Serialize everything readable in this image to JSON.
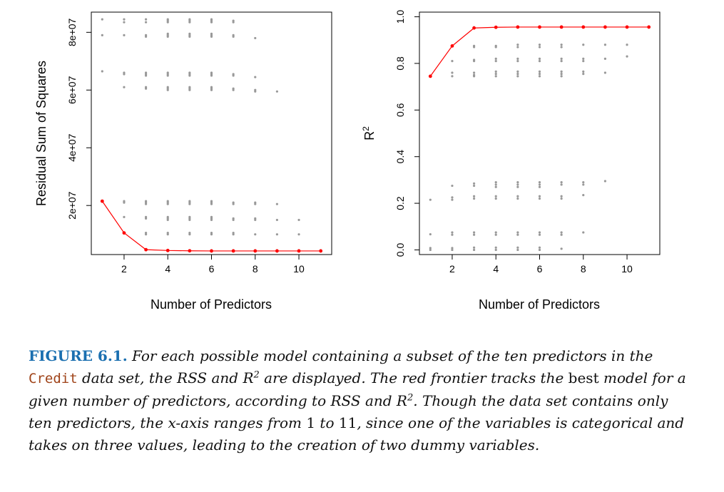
{
  "chart_data": [
    {
      "type": "scatter",
      "xlabel": "Number of Predictors",
      "ylabel": "Residual Sum of Squares",
      "xlim": [
        0.5,
        11.5
      ],
      "ylim": [
        3000000,
        87000000
      ],
      "xticks": [
        2,
        4,
        6,
        8,
        10
      ],
      "xtick_labels": [
        "2",
        "4",
        "6",
        "8",
        "10"
      ],
      "yticks": [
        20000000,
        40000000,
        60000000,
        80000000
      ],
      "ytick_labels": [
        "2e+07",
        "4e+07",
        "6e+07",
        "8e+07"
      ],
      "grid": false,
      "colors": {
        "points": "#999999",
        "frontier": "#ff0000"
      },
      "point_groups": [
        {
          "x": 1,
          "values": [
            84500000,
            79000000,
            66500000,
            21500000
          ]
        },
        {
          "x": 2,
          "values": [
            84500000,
            83500000,
            79000000,
            66000000,
            65500000,
            61000000,
            21500000,
            21000000,
            16000000,
            10500000
          ]
        },
        {
          "x": 3,
          "values": [
            84500000,
            83500000,
            79000000,
            78500000,
            66000000,
            65500000,
            65000000,
            61000000,
            60500000,
            21500000,
            21000000,
            20500000,
            16000000,
            15500000,
            10500000,
            10000000,
            4500000
          ]
        },
        {
          "x": 4,
          "values": [
            84500000,
            84000000,
            83500000,
            79500000,
            79000000,
            78500000,
            66000000,
            65500000,
            65000000,
            61000000,
            60500000,
            60000000,
            21500000,
            21000000,
            20500000,
            16000000,
            15500000,
            15000000,
            10500000,
            10000000,
            4500000
          ]
        },
        {
          "x": 5,
          "values": [
            84500000,
            84000000,
            83500000,
            79500000,
            79000000,
            78500000,
            66000000,
            65500000,
            65000000,
            61000000,
            60500000,
            60000000,
            21500000,
            21000000,
            20500000,
            16000000,
            15500000,
            15000000,
            10500000,
            10000000,
            4500000
          ]
        },
        {
          "x": 6,
          "values": [
            84500000,
            84000000,
            83500000,
            79500000,
            79000000,
            78500000,
            66000000,
            65500000,
            65000000,
            61000000,
            60500000,
            60000000,
            21500000,
            21000000,
            20500000,
            16000000,
            15500000,
            15000000,
            10500000,
            10000000,
            4500000
          ]
        },
        {
          "x": 7,
          "values": [
            84000000,
            83500000,
            79000000,
            78500000,
            65500000,
            65000000,
            60500000,
            60000000,
            21000000,
            20500000,
            15500000,
            15000000,
            10500000,
            10000000,
            4500000
          ]
        },
        {
          "x": 8,
          "values": [
            78000000,
            64500000,
            60000000,
            59500000,
            21000000,
            20500000,
            15500000,
            15000000,
            10000000,
            4500000
          ]
        },
        {
          "x": 9,
          "values": [
            59500000,
            20500000,
            15000000,
            10000000,
            4500000
          ]
        },
        {
          "x": 10,
          "values": [
            15000000,
            10000000,
            4500000
          ]
        },
        {
          "x": 11,
          "values": [
            4500000
          ]
        }
      ],
      "frontier": {
        "x": [
          1,
          2,
          3,
          4,
          5,
          6,
          7,
          8,
          9,
          10,
          11
        ],
        "y": [
          21500000,
          10500000,
          4700000,
          4400000,
          4300000,
          4250000,
          4250000,
          4250000,
          4250000,
          4250000,
          4250000
        ]
      }
    },
    {
      "type": "scatter",
      "xlabel": "Number of Predictors",
      "ylabel_base": "R",
      "ylabel_sup": "2",
      "xlim": [
        0.5,
        11.5
      ],
      "ylim": [
        -0.02,
        1.02
      ],
      "xticks": [
        2,
        4,
        6,
        8,
        10
      ],
      "xtick_labels": [
        "2",
        "4",
        "6",
        "8",
        "10"
      ],
      "yticks": [
        0.0,
        0.2,
        0.4,
        0.6,
        0.8,
        1.0
      ],
      "ytick_labels": [
        "0.0",
        "0.2",
        "0.4",
        "0.6",
        "0.8",
        "1.0"
      ],
      "grid": false,
      "colors": {
        "points": "#999999",
        "frontier": "#ff0000"
      },
      "point_groups": [
        {
          "x": 1,
          "values": [
            0.745,
            0.215,
            0.067,
            0.008,
            0.0
          ]
        },
        {
          "x": 2,
          "values": [
            0.875,
            0.81,
            0.76,
            0.745,
            0.275,
            0.225,
            0.215,
            0.075,
            0.065,
            0.008,
            0.0
          ]
        },
        {
          "x": 3,
          "values": [
            0.955,
            0.875,
            0.87,
            0.815,
            0.81,
            0.76,
            0.75,
            0.745,
            0.285,
            0.275,
            0.23,
            0.22,
            0.075,
            0.065,
            0.01,
            0.0
          ]
        },
        {
          "x": 4,
          "values": [
            0.957,
            0.875,
            0.87,
            0.82,
            0.81,
            0.765,
            0.755,
            0.745,
            0.29,
            0.28,
            0.27,
            0.23,
            0.22,
            0.075,
            0.065,
            0.01,
            0.0
          ]
        },
        {
          "x": 5,
          "values": [
            0.958,
            0.88,
            0.87,
            0.82,
            0.81,
            0.765,
            0.755,
            0.745,
            0.29,
            0.28,
            0.27,
            0.23,
            0.22,
            0.075,
            0.065,
            0.01,
            0.0
          ]
        },
        {
          "x": 6,
          "values": [
            0.958,
            0.88,
            0.87,
            0.82,
            0.81,
            0.765,
            0.755,
            0.745,
            0.29,
            0.28,
            0.27,
            0.23,
            0.22,
            0.075,
            0.065,
            0.01,
            0.0
          ]
        },
        {
          "x": 7,
          "values": [
            0.958,
            0.88,
            0.87,
            0.82,
            0.81,
            0.765,
            0.755,
            0.745,
            0.29,
            0.28,
            0.23,
            0.22,
            0.075,
            0.065,
            0.005
          ]
        },
        {
          "x": 8,
          "values": [
            0.958,
            0.88,
            0.82,
            0.81,
            0.765,
            0.755,
            0.29,
            0.28,
            0.235,
            0.075
          ]
        },
        {
          "x": 9,
          "values": [
            0.958,
            0.88,
            0.82,
            0.76,
            0.295
          ]
        },
        {
          "x": 10,
          "values": [
            0.958,
            0.88,
            0.83
          ]
        },
        {
          "x": 11,
          "values": [
            0.958
          ]
        }
      ],
      "frontier": {
        "x": [
          1,
          2,
          3,
          4,
          5,
          6,
          7,
          8,
          9,
          10,
          11
        ],
        "y": [
          0.745,
          0.875,
          0.952,
          0.955,
          0.956,
          0.956,
          0.956,
          0.956,
          0.956,
          0.956,
          0.956
        ]
      }
    }
  ],
  "caption": {
    "label": "FIGURE 6.1.",
    "s1": " For each possible model containing a subset of the ten predictors in the ",
    "code": "Credit",
    "s2": " data set, the RSS and ",
    "r1": "R",
    "sup1": "2",
    "s3": " are displayed. The red frontier tracks the ",
    "best": "best",
    "s4": " model for a given number of predictors, according to RSS and ",
    "r2": "R",
    "sup2": "2",
    "s5": ". Though the data set contains only ten predictors, the ",
    "xvar": "x",
    "s6": "-axis ranges from ",
    "n1": "1",
    "s7": " to ",
    "n2": "11",
    "s8": ", since one of the variables is categorical and takes on three values, leading to the creation of two dummy variables."
  }
}
